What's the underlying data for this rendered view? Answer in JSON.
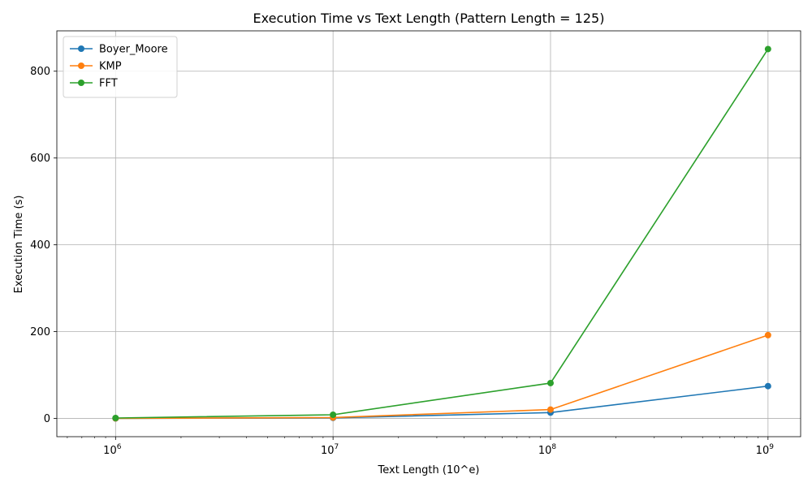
{
  "chart_data": {
    "type": "line",
    "title": "Execution Time vs Text Length (Pattern Length = 125)",
    "xlabel": "Text Length (10^e)",
    "ylabel": "Execution Time (s)",
    "xscale": "log",
    "x": [
      1000000,
      10000000,
      100000000,
      1000000000
    ],
    "xticks": [
      1000000,
      10000000,
      100000000,
      1000000000
    ],
    "xtick_base": "10",
    "xtick_exponents": [
      "6",
      "7",
      "8",
      "9"
    ],
    "yticks": [
      0,
      200,
      400,
      600,
      800
    ],
    "yticklabels": [
      "0",
      "200",
      "400",
      "600",
      "800"
    ],
    "ylim": [
      -42,
      893
    ],
    "grid": true,
    "legend_position": "upper-left",
    "series": [
      {
        "name": "Boyer_Moore",
        "color": "#1f77b4",
        "values": [
          0.1,
          1.3,
          13.5,
          74.5
        ]
      },
      {
        "name": "KMP",
        "color": "#ff7f0e",
        "values": [
          0.2,
          2.0,
          20.5,
          192.0
        ]
      },
      {
        "name": "FFT",
        "color": "#2ca02c",
        "values": [
          1.0,
          8.5,
          81.5,
          851.0
        ]
      }
    ]
  }
}
